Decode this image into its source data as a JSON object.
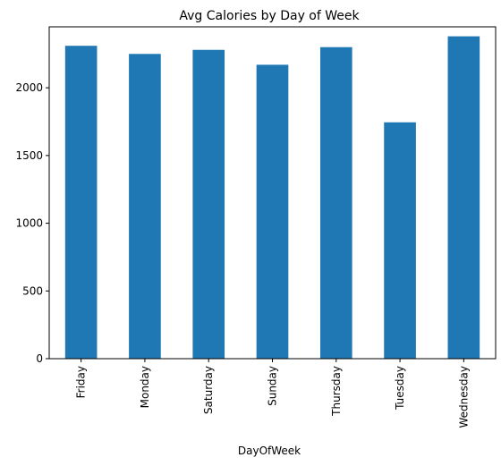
{
  "chart_data": {
    "type": "bar",
    "title": "Avg Calories by Day of Week",
    "xlabel": "DayOfWeek",
    "ylabel": "",
    "categories": [
      "Friday",
      "Monday",
      "Saturday",
      "Sunday",
      "Thursday",
      "Tuesday",
      "Wednesday"
    ],
    "values": [
      2310,
      2250,
      2280,
      2170,
      2300,
      1745,
      2380
    ],
    "ylim": [
      0,
      2450
    ],
    "yticks": [
      0,
      500,
      1000,
      1500,
      2000
    ],
    "grid": false,
    "bar_color": "#1f77b4"
  }
}
